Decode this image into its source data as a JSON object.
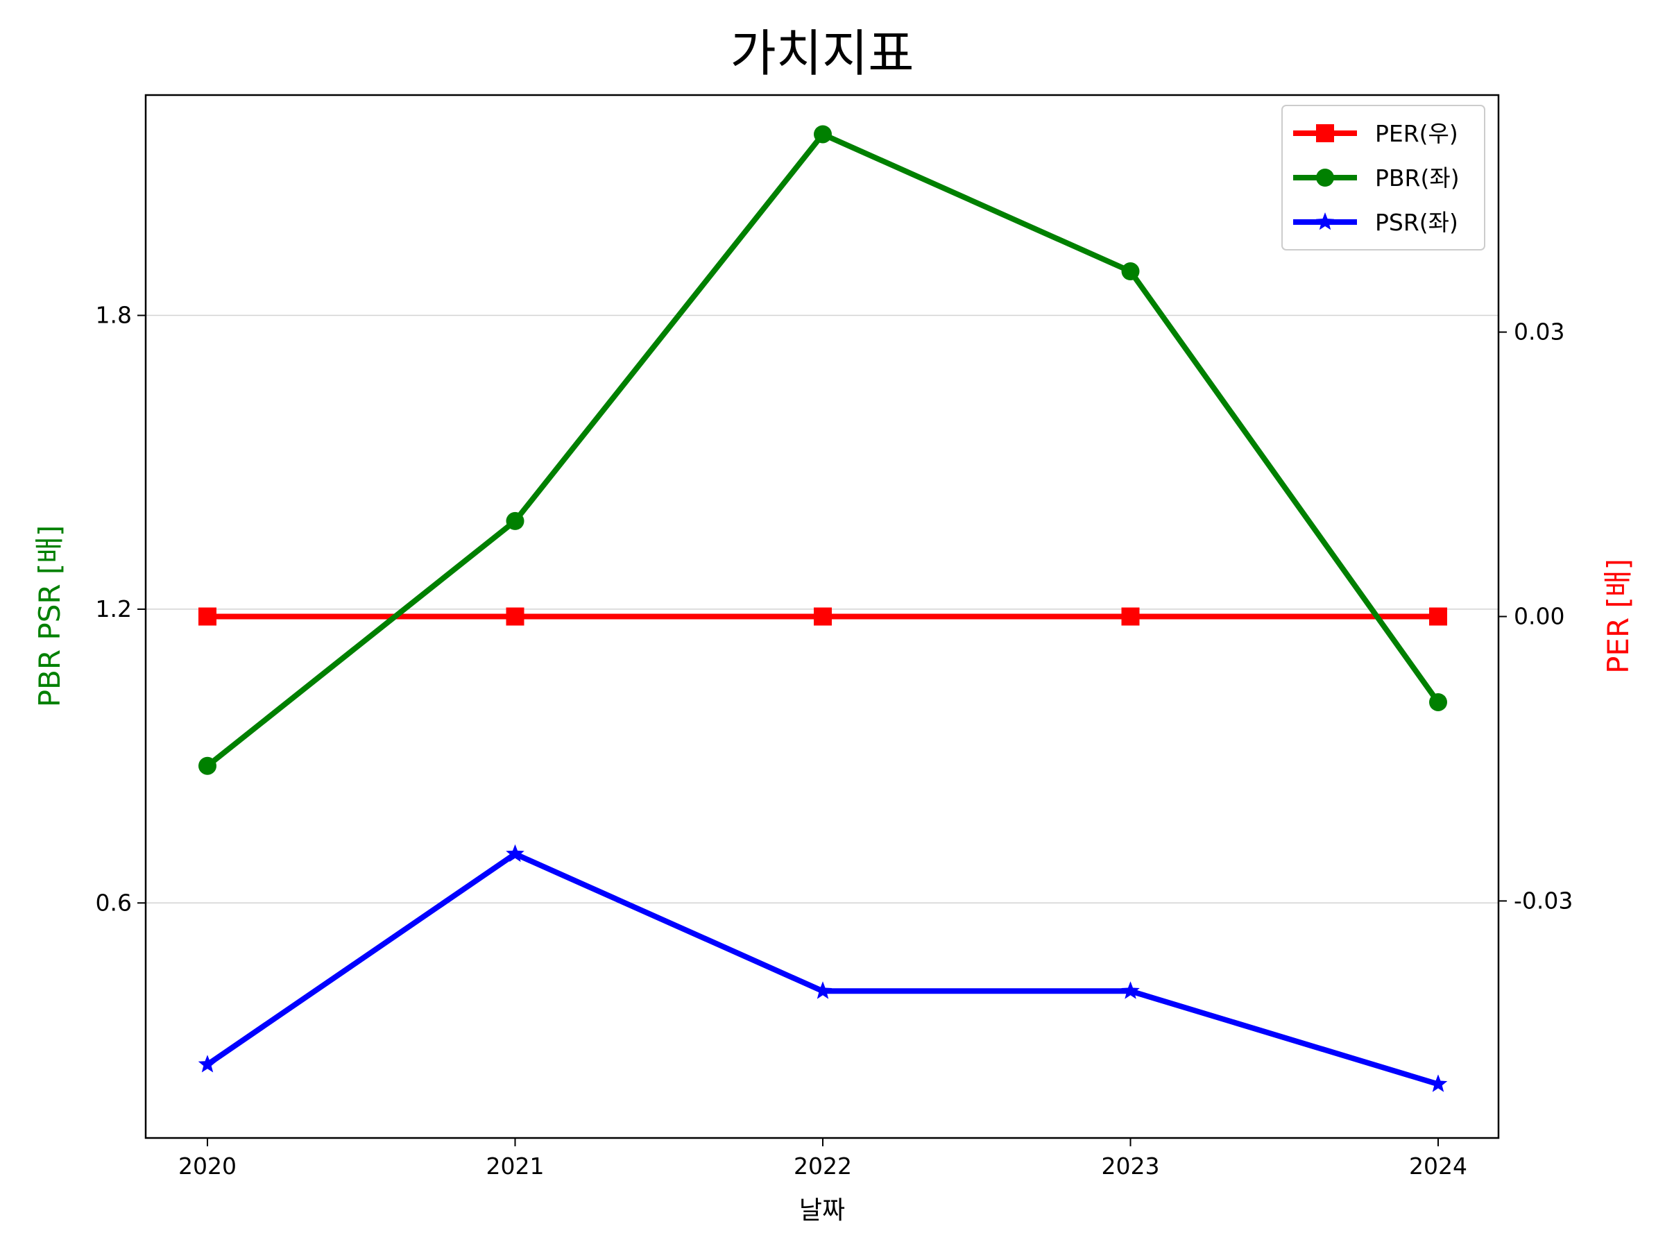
{
  "chart_data": {
    "type": "line",
    "title": "가치지표",
    "xlabel": "날짜",
    "ylabel_left": "PBR PSR [배]",
    "ylabel_right": "PER [배]",
    "categories": [
      "2020",
      "2021",
      "2022",
      "2023",
      "2024"
    ],
    "left_axis": {
      "ylim": [
        0.12,
        2.25
      ],
      "ticks": [
        0.6,
        1.2,
        1.8
      ],
      "tick_labels": [
        "0.6",
        "1.2",
        "1.8"
      ],
      "grid": true
    },
    "right_axis": {
      "ylim": [
        -0.055,
        0.055
      ],
      "ticks": [
        -0.03,
        0.0,
        0.03
      ],
      "tick_labels": [
        "-0.03",
        "0.00",
        "0.03"
      ]
    },
    "series": [
      {
        "name": "PER(우)",
        "axis": "right",
        "color": "#ff0000",
        "marker": "square",
        "values": [
          0,
          0,
          0,
          0,
          0
        ]
      },
      {
        "name": "PBR(좌)",
        "axis": "left",
        "color": "#008000",
        "marker": "circle",
        "values": [
          0.88,
          1.38,
          2.17,
          1.89,
          1.01
        ]
      },
      {
        "name": "PSR(좌)",
        "axis": "left",
        "color": "#0000ff",
        "marker": "star",
        "values": [
          0.27,
          0.7,
          0.42,
          0.42,
          0.23
        ]
      }
    ],
    "legend_position": "top-right"
  }
}
